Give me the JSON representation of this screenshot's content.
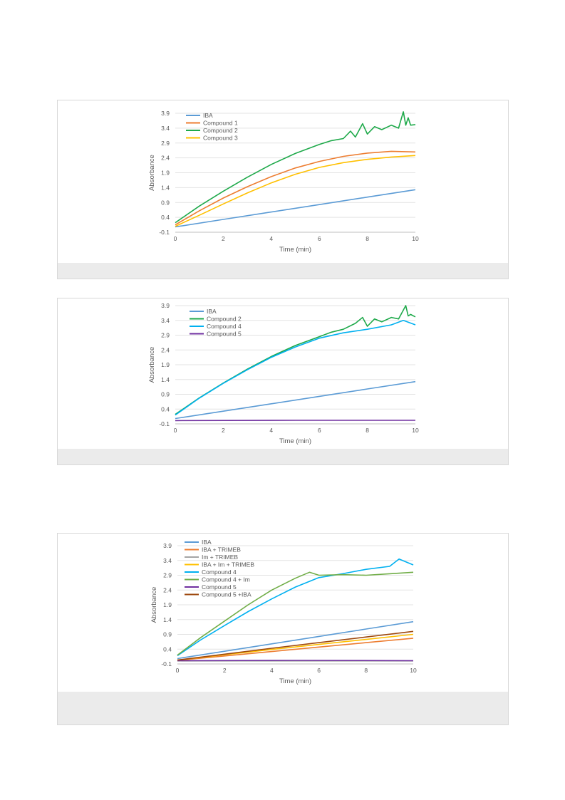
{
  "chart_data": [
    {
      "type": "line",
      "xlabel": "Time (min)",
      "ylabel": "Absorbance",
      "xlim": [
        0,
        10
      ],
      "ylim": [
        -0.1,
        3.9
      ],
      "xticks": [
        0,
        2,
        4,
        6,
        8,
        10
      ],
      "yticks": [
        -0.1,
        0.4,
        0.9,
        1.4,
        1.9,
        2.4,
        2.9,
        3.4,
        3.9
      ],
      "grid": "horizontal",
      "legend_position": "top-left",
      "series": [
        {
          "name": "IBA",
          "color": "#5b9bd5",
          "x": [
            0,
            2,
            4,
            6,
            8,
            10
          ],
          "y": [
            0.08,
            0.33,
            0.58,
            0.83,
            1.08,
            1.33
          ]
        },
        {
          "name": "Compound 1",
          "color": "#ed7d31",
          "x": [
            0,
            1,
            2,
            3,
            4,
            5,
            6,
            7,
            8,
            9,
            10
          ],
          "y": [
            0.15,
            0.62,
            1.05,
            1.43,
            1.77,
            2.06,
            2.28,
            2.45,
            2.56,
            2.62,
            2.6
          ]
        },
        {
          "name": "Compound 2",
          "color": "#1ea94a",
          "x": [
            0,
            1,
            2,
            3,
            4,
            5,
            6,
            6.5,
            7,
            7.3,
            7.5,
            7.8,
            8,
            8.3,
            8.6,
            9,
            9.3,
            9.5,
            9.6,
            9.7,
            9.8,
            10
          ],
          "y": [
            0.22,
            0.78,
            1.28,
            1.75,
            2.18,
            2.55,
            2.85,
            2.98,
            3.05,
            3.3,
            3.1,
            3.55,
            3.2,
            3.45,
            3.35,
            3.5,
            3.4,
            3.95,
            3.5,
            3.75,
            3.5,
            3.52
          ]
        },
        {
          "name": "Compound 3",
          "color": "#ffc000",
          "x": [
            0,
            1,
            2,
            3,
            4,
            5,
            6,
            7,
            8,
            9,
            10
          ],
          "y": [
            0.1,
            0.47,
            0.85,
            1.22,
            1.56,
            1.85,
            2.08,
            2.24,
            2.35,
            2.43,
            2.48
          ]
        }
      ]
    },
    {
      "type": "line",
      "xlabel": "Time (min)",
      "ylabel": "Absorbance",
      "xlim": [
        0,
        10
      ],
      "ylim": [
        -0.1,
        3.9
      ],
      "xticks": [
        0,
        2,
        4,
        6,
        8,
        10
      ],
      "yticks": [
        -0.1,
        0.4,
        0.9,
        1.4,
        1.9,
        2.4,
        2.9,
        3.4,
        3.9
      ],
      "grid": "horizontal",
      "legend_position": "top-left",
      "series": [
        {
          "name": "IBA",
          "color": "#5b9bd5",
          "x": [
            0,
            2,
            4,
            6,
            8,
            10
          ],
          "y": [
            0.08,
            0.33,
            0.58,
            0.83,
            1.08,
            1.33
          ]
        },
        {
          "name": "Compound 2",
          "color": "#1ea94a",
          "x": [
            0,
            1,
            2,
            3,
            4,
            5,
            6,
            6.5,
            7,
            7.5,
            7.8,
            8,
            8.3,
            8.6,
            9,
            9.3,
            9.6,
            9.7,
            9.8,
            10
          ],
          "y": [
            0.22,
            0.78,
            1.28,
            1.75,
            2.18,
            2.55,
            2.85,
            3.0,
            3.1,
            3.3,
            3.5,
            3.2,
            3.45,
            3.35,
            3.5,
            3.45,
            3.9,
            3.55,
            3.6,
            3.52
          ]
        },
        {
          "name": "Compound 4",
          "color": "#00b0f0",
          "x": [
            0,
            1,
            2,
            3,
            4,
            5,
            6,
            7,
            8,
            9,
            9.5,
            10
          ],
          "y": [
            0.2,
            0.77,
            1.27,
            1.73,
            2.15,
            2.5,
            2.8,
            2.98,
            3.1,
            3.25,
            3.4,
            3.25
          ]
        },
        {
          "name": "Compound 5",
          "color": "#7030a0",
          "x": [
            0,
            5,
            10
          ],
          "y": [
            0.01,
            0.02,
            0.02
          ]
        }
      ]
    },
    {
      "type": "line",
      "xlabel": "Time (min)",
      "ylabel": "Absorbance",
      "xlim": [
        0,
        10
      ],
      "ylim": [
        -0.1,
        3.9
      ],
      "xticks": [
        0,
        2,
        4,
        6,
        8,
        10
      ],
      "yticks": [
        -0.1,
        0.4,
        0.9,
        1.4,
        1.9,
        2.4,
        2.9,
        3.4,
        3.9
      ],
      "grid": "horizontal",
      "legend_position": "top-left",
      "series": [
        {
          "name": "IBA",
          "color": "#5b9bd5",
          "x": [
            0,
            2,
            4,
            6,
            8,
            10
          ],
          "y": [
            0.08,
            0.33,
            0.58,
            0.83,
            1.08,
            1.33
          ]
        },
        {
          "name": "IBA + TRIMEB",
          "color": "#ed7d31",
          "x": [
            0,
            2,
            4,
            6,
            8,
            10
          ],
          "y": [
            0.02,
            0.17,
            0.32,
            0.47,
            0.62,
            0.77
          ]
        },
        {
          "name": "Im + TRIMEB",
          "color": "#a5a5a5",
          "x": [
            0,
            5,
            10
          ],
          "y": [
            0.0,
            0.0,
            0.0
          ]
        },
        {
          "name": "IBA + Im + TRIMEB",
          "color": "#ffc000",
          "x": [
            0,
            2,
            4,
            6,
            8,
            10
          ],
          "y": [
            0.03,
            0.21,
            0.39,
            0.56,
            0.73,
            0.9
          ]
        },
        {
          "name": "Compound 4",
          "color": "#00b0f0",
          "x": [
            0,
            1,
            2,
            3,
            4,
            5,
            6,
            7,
            8,
            9,
            9.4,
            10
          ],
          "y": [
            0.18,
            0.72,
            1.2,
            1.67,
            2.1,
            2.5,
            2.82,
            2.95,
            3.1,
            3.2,
            3.45,
            3.25
          ]
        },
        {
          "name": "Compound 4 + Im",
          "color": "#70ad47",
          "x": [
            0,
            1,
            2,
            3,
            4,
            5,
            5.6,
            6,
            7,
            8,
            9,
            10
          ],
          "y": [
            0.2,
            0.8,
            1.35,
            1.9,
            2.4,
            2.8,
            3.0,
            2.9,
            2.92,
            2.9,
            2.95,
            3.0
          ]
        },
        {
          "name": "Compound 5",
          "color": "#7030a0",
          "x": [
            0,
            5,
            10
          ],
          "y": [
            0.01,
            0.02,
            0.01
          ]
        },
        {
          "name": "Compound 5 +IBA",
          "color": "#9e480e",
          "x": [
            0,
            2,
            4,
            6,
            8,
            10
          ],
          "y": [
            0.03,
            0.23,
            0.43,
            0.62,
            0.81,
            1.0
          ]
        }
      ]
    }
  ]
}
